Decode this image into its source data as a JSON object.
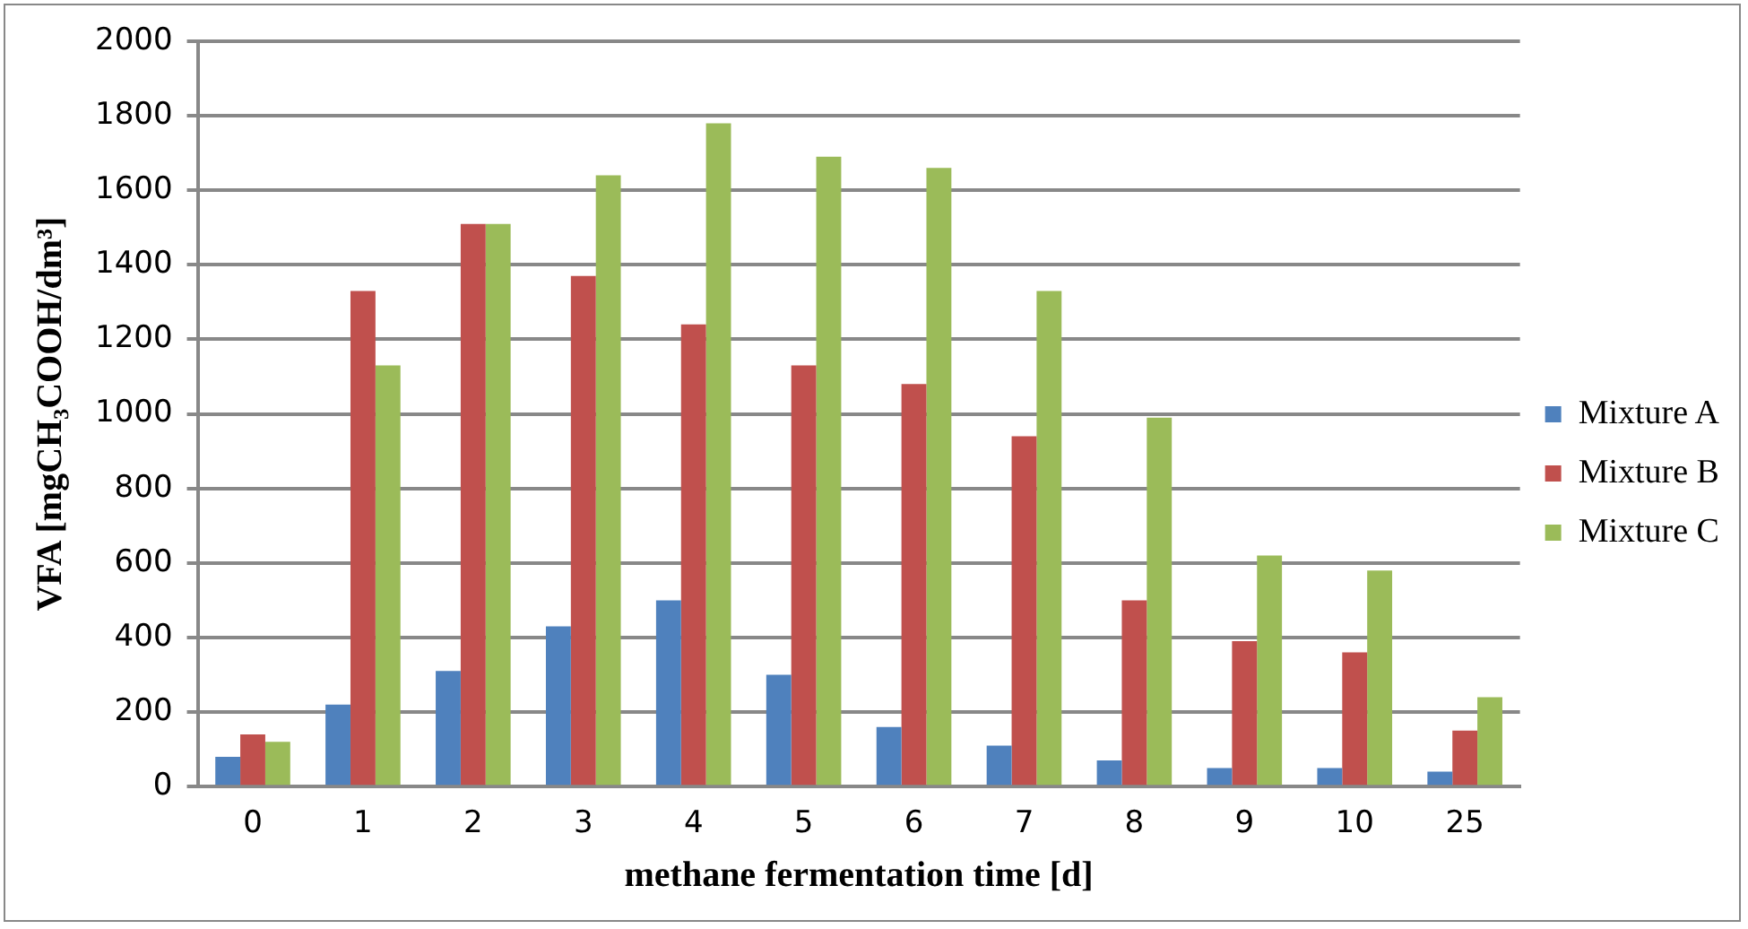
{
  "chart_data": {
    "type": "bar",
    "xlabel": "methane fermentation time [d]",
    "ylabel": "VFA [mgCH₃COOH/dm³]",
    "categories": [
      "0",
      "1",
      "2",
      "3",
      "4",
      "5",
      "6",
      "7",
      "8",
      "9",
      "10",
      "25"
    ],
    "series": [
      {
        "name": "Mixture A",
        "color": "#4f81bd",
        "values": [
          80,
          220,
          310,
          430,
          500,
          300,
          160,
          110,
          70,
          50,
          50,
          40
        ]
      },
      {
        "name": "Mixture B",
        "color": "#c0504d",
        "values": [
          140,
          1330,
          1510,
          1370,
          1240,
          1130,
          1080,
          940,
          500,
          390,
          360,
          150
        ]
      },
      {
        "name": "Mixture C",
        "color": "#9bbb59",
        "values": [
          120,
          1130,
          1510,
          1640,
          1780,
          1690,
          1660,
          1330,
          990,
          620,
          580,
          240
        ]
      }
    ],
    "ylim": [
      0,
      2000
    ],
    "yticks": [
      0,
      200,
      400,
      600,
      800,
      1000,
      1200,
      1400,
      1600,
      1800,
      2000
    ],
    "grid": "y",
    "legend": "right"
  }
}
